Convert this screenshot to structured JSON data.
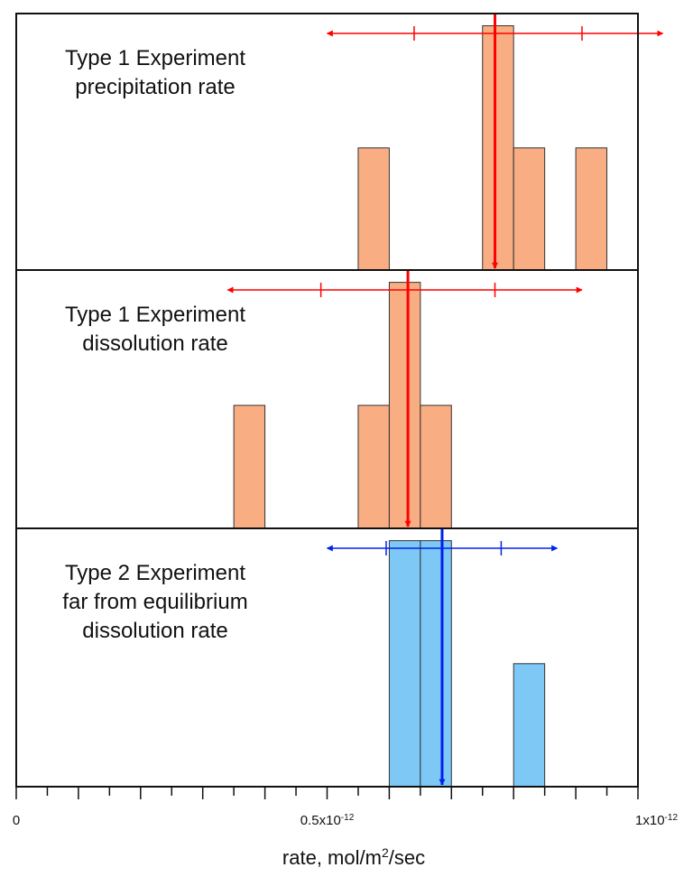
{
  "chart_data": {
    "type": "bar",
    "xlabel_parts": {
      "prefix": "rate, mol/m",
      "superscript": "2",
      "suffix": "/sec"
    },
    "xlim": [
      0,
      1.0
    ],
    "x_unit_multiplier": "x10^-12",
    "x_ticks": [
      {
        "value": 0,
        "label": "0"
      },
      {
        "value": 0.5,
        "label": "0.5x10",
        "exp": "-12"
      },
      {
        "value": 1.0,
        "label": "1x10",
        "exp": "-12"
      }
    ],
    "minor_tick_step": 0.05,
    "bin_width": 0.05,
    "panels": [
      {
        "title_lines": [
          "Type 1 Experiment",
          "precipitation rate"
        ],
        "color": "#f9ad83",
        "marker_color": "#ff0000",
        "ylim": [
          0,
          2.1
        ],
        "bars": [
          {
            "x_start": 0.55,
            "count": 1
          },
          {
            "x_start": 0.75,
            "count": 2
          },
          {
            "x_start": 0.8,
            "count": 1
          },
          {
            "x_start": 0.9,
            "count": 1
          }
        ],
        "mean": 0.77,
        "range_ticks": [
          0.64,
          0.91
        ],
        "range_arrow": [
          0.5,
          1.04
        ]
      },
      {
        "title_lines": [
          "Type 1 Experiment",
          "dissolution rate"
        ],
        "color": "#f9ad83",
        "marker_color": "#ff0000",
        "ylim": [
          0,
          2.1
        ],
        "bars": [
          {
            "x_start": 0.35,
            "count": 1
          },
          {
            "x_start": 0.55,
            "count": 1
          },
          {
            "x_start": 0.6,
            "count": 2
          },
          {
            "x_start": 0.65,
            "count": 1
          }
        ],
        "mean": 0.63,
        "range_ticks": [
          0.49,
          0.77
        ],
        "range_arrow": [
          0.34,
          0.91
        ]
      },
      {
        "title_lines": [
          "Type 2 Experiment",
          "far from equilibrium",
          "dissolution rate"
        ],
        "color": "#7dc8f5",
        "marker_color": "#0022ee",
        "ylim": [
          0,
          2.1
        ],
        "bars": [
          {
            "x_start": 0.6,
            "count": 2
          },
          {
            "x_start": 0.65,
            "count": 2
          },
          {
            "x_start": 0.8,
            "count": 1
          }
        ],
        "mean": 0.685,
        "range_ticks": [
          0.595,
          0.78
        ],
        "range_arrow": [
          0.5,
          0.87
        ]
      }
    ]
  }
}
